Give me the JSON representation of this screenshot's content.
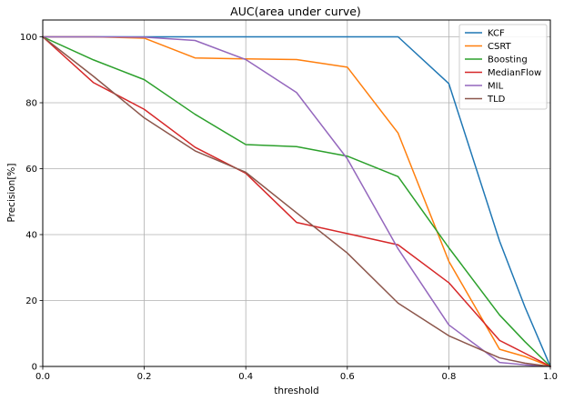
{
  "chart_data": {
    "type": "line",
    "title": "AUC(area under curve)",
    "xlabel": "threshold",
    "ylabel": "Precision[%]",
    "xlim": [
      0.0,
      1.0
    ],
    "ylim": [
      0,
      105
    ],
    "xticks": [
      "0.0",
      "0.2",
      "0.4",
      "0.6",
      "0.8",
      "1.0"
    ],
    "yticks": [
      "0",
      "20",
      "40",
      "60",
      "80",
      "100"
    ],
    "grid": true,
    "legend_position": "top-right",
    "x": [
      0.0,
      0.1,
      0.2,
      0.3,
      0.4,
      0.5,
      0.6,
      0.7,
      0.8,
      0.9,
      0.95,
      1.0
    ],
    "series": [
      {
        "name": "KCF",
        "color": "#1f77b4",
        "values": [
          100,
          100,
          100,
          100,
          100,
          100,
          100,
          100,
          85.8,
          38,
          18,
          0
        ]
      },
      {
        "name": "CSRT",
        "color": "#ff7f0e",
        "values": [
          100,
          100,
          99.6,
          93.6,
          93.3,
          93.1,
          90.8,
          70.8,
          31.9,
          5.2,
          3,
          0
        ]
      },
      {
        "name": "Boosting",
        "color": "#2ca02c",
        "values": [
          100,
          93,
          87,
          76.5,
          67.3,
          66.7,
          63.8,
          57.6,
          36,
          15.6,
          7.5,
          0
        ]
      },
      {
        "name": "MedianFlow",
        "color": "#d62728",
        "values": [
          100,
          86.1,
          78,
          66.5,
          58.6,
          43.7,
          40.3,
          36.9,
          25.4,
          7.9,
          4,
          0
        ]
      },
      {
        "name": "MIL",
        "color": "#9467bd",
        "values": [
          100,
          100,
          99.9,
          98.9,
          93.1,
          83.1,
          63,
          35.7,
          12.6,
          1.2,
          0.5,
          0
        ]
      },
      {
        "name": "TLD",
        "color": "#8c564b",
        "values": [
          100,
          88,
          75.4,
          65.4,
          58.9,
          46.6,
          34.4,
          19.2,
          9.3,
          2.6,
          1,
          0
        ]
      }
    ]
  }
}
